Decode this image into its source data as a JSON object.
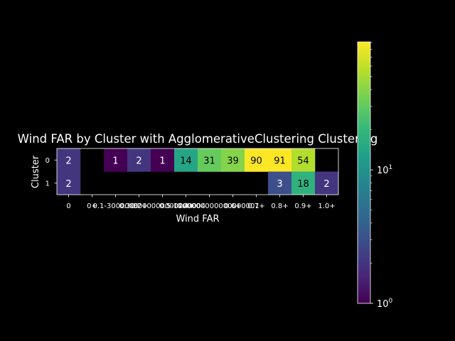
{
  "chart_data": {
    "type": "heatmap",
    "title": "Wind FAR by Cluster with AgglomerativeClustering Clustering",
    "xlabel": "Wind FAR",
    "ylabel": "Cluster",
    "x_ticks": [
      "0",
      "0+",
      "0.1-3000000",
      "0.2+",
      "0.3-3000000000000004",
      "0.4+",
      "0.5-1700000000000000001",
      "0.6+",
      "0.7+",
      "0.8+",
      "0.9+",
      "1.0+"
    ],
    "y_ticks": [
      "0",
      "1"
    ],
    "values": [
      [
        2,
        null,
        1,
        2,
        1,
        14,
        31,
        39,
        90,
        91,
        54,
        null
      ],
      [
        2,
        null,
        null,
        null,
        null,
        null,
        null,
        null,
        null,
        3,
        18,
        2
      ]
    ],
    "colorbar": {
      "scale": "log",
      "min": 1,
      "max": 91,
      "colormap": "viridis",
      "tick_labels": [
        {
          "base": "10",
          "exp": "0",
          "value": 1
        },
        {
          "base": "10",
          "exp": "1",
          "value": 10
        }
      ]
    },
    "background": "#000000",
    "text_color": "#ffffff"
  }
}
